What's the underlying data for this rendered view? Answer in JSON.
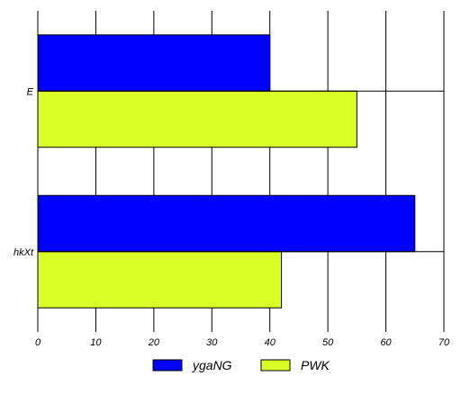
{
  "chart_data": {
    "type": "bar",
    "orientation": "horizontal",
    "categories": [
      "E",
      "hkXt"
    ],
    "series": [
      {
        "name": "ygaNG",
        "values": [
          40,
          65
        ],
        "color": "#0000ff"
      },
      {
        "name": "PWK",
        "values": [
          55,
          42
        ],
        "color": "#d9ff26"
      }
    ],
    "xlim": [
      0,
      70
    ],
    "xticks": [
      0,
      10,
      20,
      30,
      40,
      50,
      60,
      70
    ],
    "xticks_text": [
      "0",
      "10",
      "20",
      "30",
      "40",
      "50",
      "60",
      "70"
    ],
    "grid": true,
    "legend": "bottom",
    "title": "",
    "xlabel": "",
    "ylabel": ""
  }
}
